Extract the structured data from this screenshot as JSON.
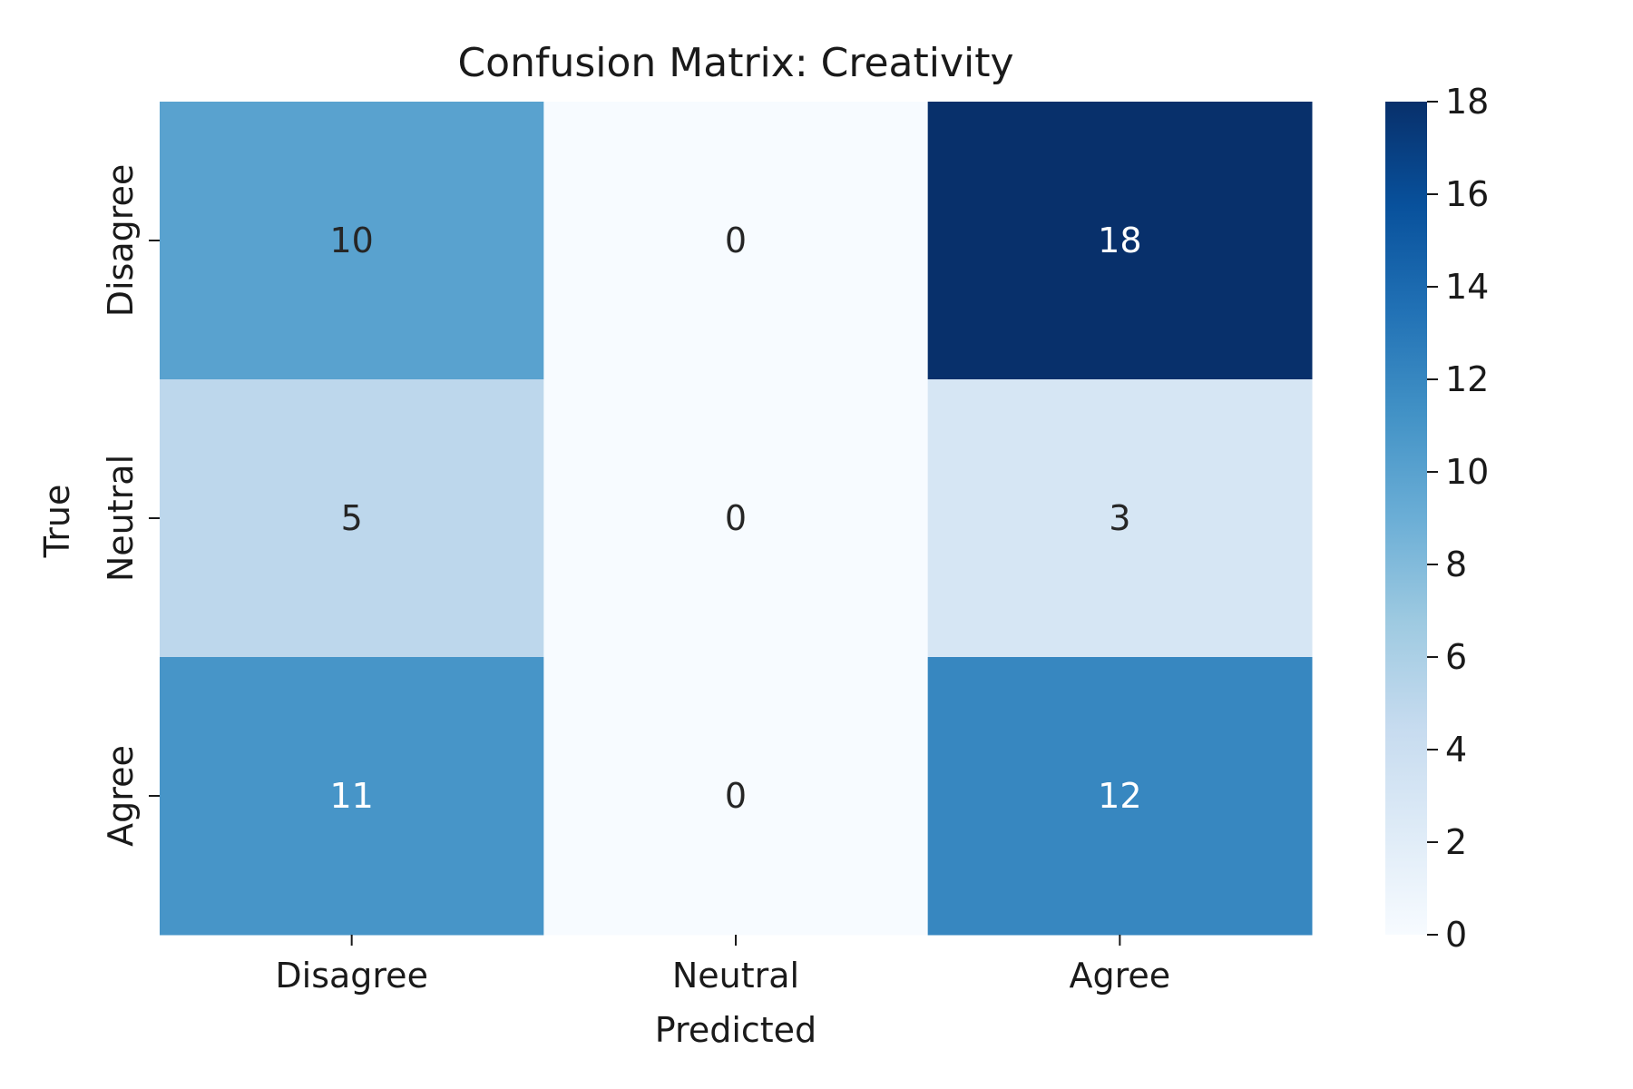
{
  "chart_data": {
    "type": "heatmap",
    "title": "Confusion Matrix: Creativity",
    "xlabel": "Predicted",
    "ylabel": "True",
    "x_categories": [
      "Disagree",
      "Neutral",
      "Agree"
    ],
    "y_categories": [
      "Disagree",
      "Neutral",
      "Agree"
    ],
    "values": [
      [
        10,
        0,
        18
      ],
      [
        5,
        0,
        3
      ],
      [
        11,
        0,
        12
      ]
    ],
    "colorbar": {
      "range": [
        0,
        18
      ],
      "ticks": [
        0,
        2,
        4,
        6,
        8,
        10,
        12,
        14,
        16,
        18
      ]
    },
    "colormap": [
      "#f7fbff",
      "#deebf7",
      "#c6dbef",
      "#9ecae1",
      "#6baed6",
      "#4292c6",
      "#2171b5",
      "#08519c",
      "#08306b"
    ],
    "grid": false
  }
}
